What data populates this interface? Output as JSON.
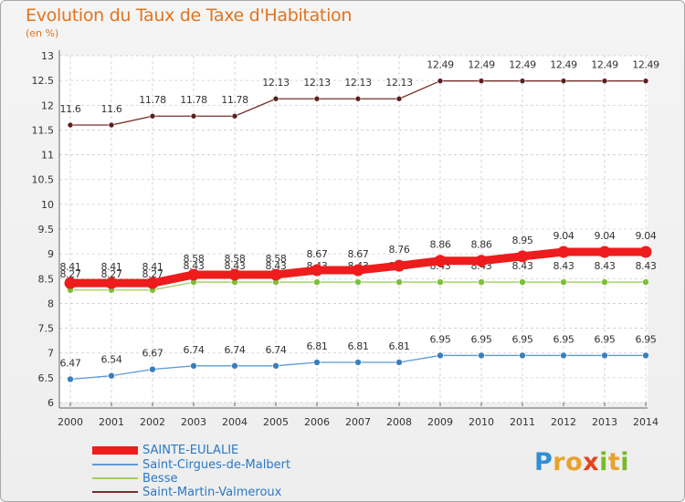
{
  "title": "Evolution du Taux de Taxe d'Habitation",
  "unit_label": "(en %)",
  "colors": {
    "title": "#e2731f",
    "legend_text": "#2b78c5",
    "axis_text": "#333333",
    "grid": "#cccccc"
  },
  "brand": {
    "logo_letters": [
      "P",
      "r",
      "o",
      "x",
      "i",
      "t",
      "i"
    ],
    "logo_colors": [
      "#2f8fd6",
      "#e9a12a",
      "#e9a12a",
      "#e2451f",
      "#79b928",
      "#e9a12a",
      "#79b928"
    ]
  },
  "chart_data": {
    "type": "line",
    "title": "Evolution du Taux de Taxe d'Habitation",
    "ylabel": "(en %)",
    "xlabel": "",
    "ylim": [
      6,
      13
    ],
    "yticks": [
      "6",
      "6.5",
      "7",
      "7.5",
      "8",
      "8.5",
      "9",
      "9.5",
      "10",
      "10.5",
      "11",
      "11.5",
      "12",
      "12.5",
      "13"
    ],
    "x": [
      "2000",
      "2001",
      "2002",
      "2003",
      "2004",
      "2005",
      "2006",
      "2007",
      "2008",
      "2009",
      "2010",
      "2011",
      "2012",
      "2013",
      "2014"
    ],
    "grid": true,
    "legend_position": "bottom-left",
    "series": [
      {
        "name": "Saint-Martin-Valmeroux",
        "color": "#7a2e2e",
        "point_color": "#5a1e1e",
        "width": 1.3,
        "marker": 3,
        "values": [
          11.6,
          11.6,
          11.78,
          11.78,
          11.78,
          12.13,
          12.13,
          12.13,
          12.13,
          12.49,
          12.49,
          12.49,
          12.49,
          12.49,
          12.49
        ],
        "labels": [
          "11.6",
          "11.6",
          "11.78",
          "11.78",
          "11.78",
          "12.13",
          "12.13",
          "12.13",
          "12.13",
          "12.49",
          "12.49",
          "12.49",
          "12.49",
          "12.49",
          "12.49"
        ]
      },
      {
        "name": "Saint-Cirgues-de-Malbert",
        "color": "#5b9bd5",
        "point_color": "#3a7fbd",
        "width": 1.3,
        "marker": 3.5,
        "values": [
          6.47,
          6.54,
          6.67,
          6.74,
          6.74,
          6.74,
          6.81,
          6.81,
          6.81,
          6.95,
          6.95,
          6.95,
          6.95,
          6.95,
          6.95
        ],
        "labels": [
          "6.47",
          "6.54",
          "6.67",
          "6.74",
          "6.74",
          "6.74",
          "6.81",
          "6.81",
          "6.81",
          "6.95",
          "6.95",
          "6.95",
          "6.95",
          "6.95",
          "6.95"
        ]
      },
      {
        "name": "Besse",
        "color": "#9ccf5d",
        "point_color": "#7cbf3a",
        "width": 1.3,
        "marker": 3.5,
        "values": [
          8.27,
          8.27,
          8.27,
          8.43,
          8.43,
          8.43,
          8.43,
          8.43,
          8.43,
          8.43,
          8.43,
          8.43,
          8.43,
          8.43,
          8.43
        ],
        "labels": [
          "8.27",
          "8.27",
          "8.27",
          "8.43",
          "8.43",
          "8.43",
          "8.43",
          "8.43",
          "8.43",
          "8.43",
          "8.43",
          "8.43",
          "8.43",
          "8.43",
          "8.43"
        ]
      },
      {
        "name": "SAINTE-EULALIE",
        "color": "#ee1c1c",
        "point_color": "#ee1c1c",
        "width": 9,
        "marker": 6.5,
        "values": [
          8.41,
          8.41,
          8.41,
          8.58,
          8.58,
          8.58,
          8.67,
          8.67,
          8.76,
          8.86,
          8.86,
          8.95,
          9.04,
          9.04,
          9.04
        ],
        "labels": [
          "8.41",
          "8.41",
          "8.41",
          "8.58",
          "8.58",
          "8.58",
          "8.67",
          "8.67",
          "8.76",
          "8.86",
          "8.86",
          "8.95",
          "9.04",
          "9.04",
          "9.04"
        ]
      }
    ],
    "legend": [
      {
        "name": "SAINTE-EULALIE",
        "color": "#ee1c1c"
      },
      {
        "name": "Saint-Cirgues-de-Malbert",
        "color": "#5b9bd5"
      },
      {
        "name": "Besse",
        "color": "#9ccf5d"
      },
      {
        "name": "Saint-Martin-Valmeroux",
        "color": "#7a2e2e"
      }
    ]
  }
}
